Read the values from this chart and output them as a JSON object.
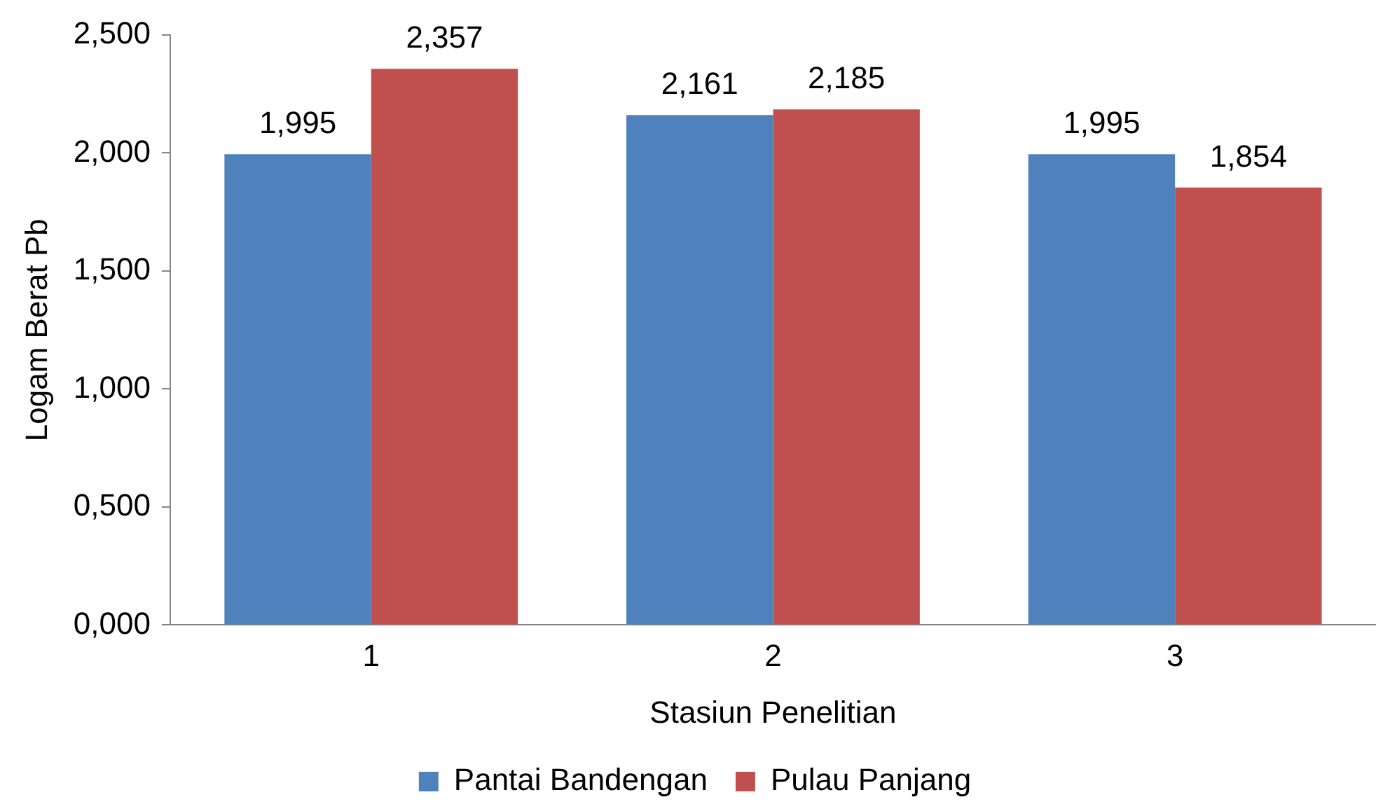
{
  "chart_data": {
    "type": "bar",
    "xlabel": "Stasiun Penelitian",
    "ylabel": "Logam Berat Pb",
    "categories": [
      "1",
      "2",
      "3"
    ],
    "series": [
      {
        "name": "Pantai Bandengan",
        "color": "#4f81bd",
        "values": [
          1.995,
          2.161,
          1.995
        ],
        "value_labels": [
          "1,995",
          "2,161",
          "1,995"
        ]
      },
      {
        "name": "Pulau Panjang",
        "color": "#c0504d",
        "values": [
          2.357,
          2.185,
          1.854
        ],
        "value_labels": [
          "2,357",
          "2,185",
          "1,854"
        ]
      }
    ],
    "ylim": [
      0,
      2.5
    ],
    "yticks": [
      {
        "value": 0,
        "label": "0,000"
      },
      {
        "value": 0.5,
        "label": "0,500"
      },
      {
        "value": 1,
        "label": "1,000"
      },
      {
        "value": 1.5,
        "label": "1,500"
      },
      {
        "value": 2,
        "label": "2,000"
      },
      {
        "value": 2.5,
        "label": "2,500"
      }
    ],
    "grid": false,
    "legend": "bottom"
  }
}
